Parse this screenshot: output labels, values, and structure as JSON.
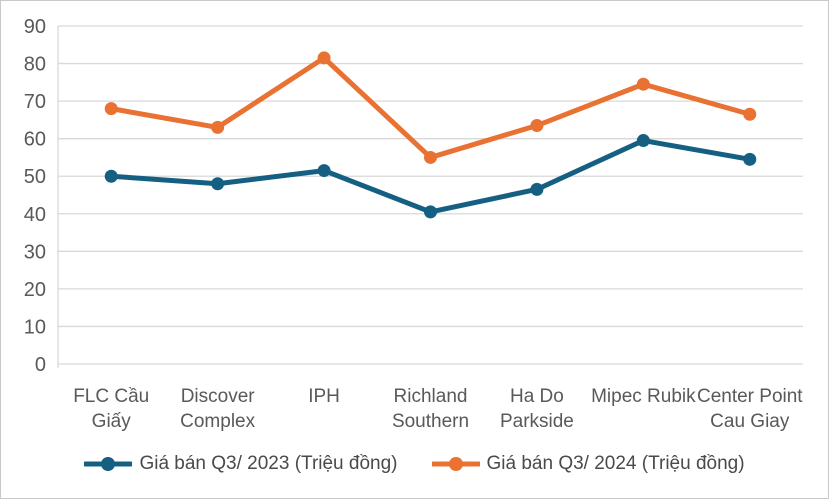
{
  "chart_data": {
    "type": "line",
    "title": "",
    "xlabel": "",
    "ylabel": "",
    "categories": [
      "FLC Cầu Giấy",
      "Discover Complex",
      "IPH",
      "Richland Southern",
      "Ha Do Parkside",
      "Mipec Rubik",
      "Center Point Cau Giay"
    ],
    "category_label_lines": [
      [
        "FLC Cầu",
        "Giấy"
      ],
      [
        "Discover",
        "Complex"
      ],
      [
        "IPH"
      ],
      [
        "Richland",
        "Southern"
      ],
      [
        "Ha Do",
        "Parkside"
      ],
      [
        "Mipec Rubik"
      ],
      [
        "Center Point",
        "Cau Giay"
      ]
    ],
    "series": [
      {
        "name": "Giá bán Q3/ 2023 (Triệu đồng)",
        "color": "#156082",
        "values": [
          50,
          48,
          51.5,
          40.5,
          46.5,
          59.5,
          54.5
        ]
      },
      {
        "name": "Giá bán Q3/ 2024 (Triệu đồng)",
        "color": "#E97132",
        "values": [
          68,
          63,
          81.5,
          55,
          63.5,
          74.5,
          66.5
        ]
      }
    ],
    "y_axis": {
      "min": 0,
      "max": 90,
      "step": 10,
      "tick_labels": [
        "0",
        "10",
        "20",
        "30",
        "40",
        "50",
        "60",
        "70",
        "80",
        "90"
      ]
    },
    "legend_position": "bottom",
    "grid": true,
    "colors": {
      "gridline": "#d9d9d9",
      "axis_line": "#d9d9d9",
      "axis_text": "#595959",
      "legend_text": "#4a4a4a",
      "background": "#ffffff",
      "border": "#c9c9c9"
    },
    "ylim": [
      0,
      90
    ]
  }
}
